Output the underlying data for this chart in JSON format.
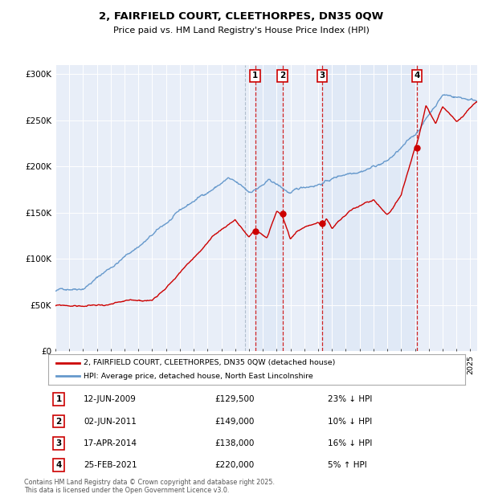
{
  "title": "2, FAIRFIELD COURT, CLEETHORPES, DN35 0QW",
  "subtitle": "Price paid vs. HM Land Registry's House Price Index (HPI)",
  "ylim": [
    0,
    310000
  ],
  "yticks": [
    0,
    50000,
    100000,
    150000,
    200000,
    250000,
    300000
  ],
  "ytick_labels": [
    "£0",
    "£50K",
    "£100K",
    "£150K",
    "£200K",
    "£250K",
    "£300K"
  ],
  "xlim_start": 1995.0,
  "xlim_end": 2025.5,
  "sale_dates": [
    2009.44,
    2011.42,
    2014.29,
    2021.15
  ],
  "sale_prices": [
    129500,
    149000,
    138000,
    220000
  ],
  "sale_labels": [
    "1",
    "2",
    "3",
    "4"
  ],
  "sale_date_strs": [
    "12-JUN-2009",
    "02-JUN-2011",
    "17-APR-2014",
    "25-FEB-2021"
  ],
  "sale_price_strs": [
    "£129,500",
    "£149,000",
    "£138,000",
    "£220,000"
  ],
  "sale_hpi_strs": [
    "23% ↓ HPI",
    "10% ↓ HPI",
    "16% ↓ HPI",
    "5% ↑ HPI"
  ],
  "legend_property": "2, FAIRFIELD COURT, CLEETHORPES, DN35 0QW (detached house)",
  "legend_hpi": "HPI: Average price, detached house, North East Lincolnshire",
  "property_color": "#cc0000",
  "hpi_color": "#6699cc",
  "vline_color_dashed": "#aabbdd",
  "vline_color_sale": "#cc0000",
  "box_color": "#cc0000",
  "background_color": "#e8eef8",
  "shade_color": "#dde8f4",
  "footer": "Contains HM Land Registry data © Crown copyright and database right 2025.\nThis data is licensed under the Open Government Licence v3.0."
}
